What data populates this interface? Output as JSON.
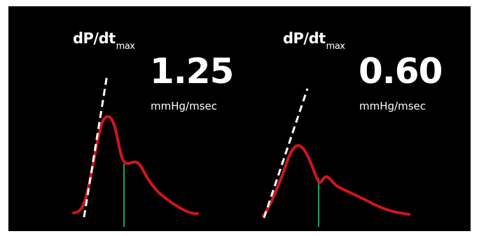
{
  "panels": [
    {
      "label_main": "dP/dt",
      "label_sub": "max",
      "value": "1.25",
      "unit": "mmHg/msec"
    },
    {
      "label_main": "dP/dt",
      "label_sub": "max",
      "value": "0.60",
      "unit": "mmHg/msec"
    }
  ],
  "colors": {
    "background": "#000000",
    "curve": "#d0161b",
    "tangent": "#ffffff",
    "marker": "#1fa05a"
  }
}
